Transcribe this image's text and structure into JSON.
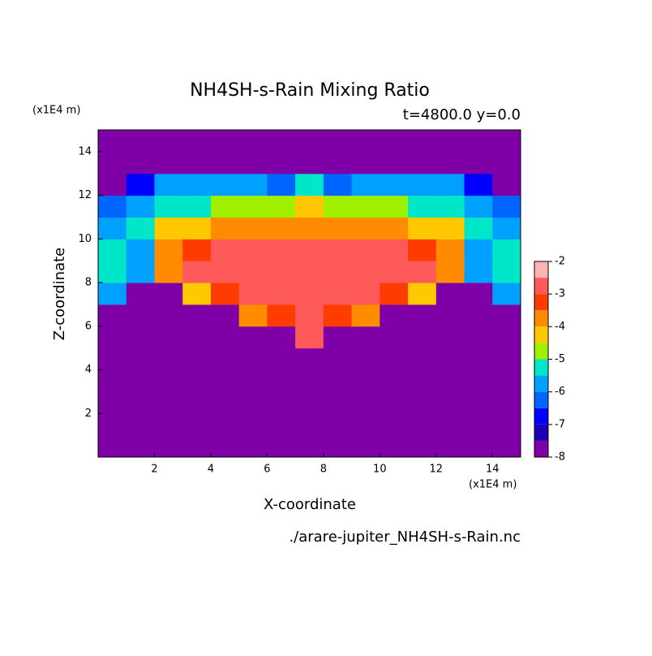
{
  "chart_data": {
    "type": "contour",
    "title": "NH4SH-s-Rain Mixing Ratio",
    "subtitle": "t=4800.0 y=0.0",
    "x_label": "X-coordinate",
    "y_label": "Z-coordinate",
    "x_unit": "(x1E4 m)",
    "y_unit": "(x1E4 m)",
    "footer": "./arare-jupiter_NH4SH-s-Rain.nc",
    "xlim": [
      0,
      15
    ],
    "ylim": [
      0,
      15
    ],
    "xticks": [
      2,
      4,
      6,
      8,
      10,
      12,
      14
    ],
    "yticks": [
      2,
      4,
      6,
      8,
      10,
      12,
      14
    ],
    "x": [
      0.5,
      1.5,
      2.5,
      3.5,
      4.5,
      5.5,
      6.5,
      7.5,
      8.5,
      9.5,
      10.5,
      11.5,
      12.5,
      13.5,
      14.5
    ],
    "y": [
      0.5,
      1.5,
      2.5,
      3.5,
      4.5,
      5.5,
      6.5,
      7.5,
      8.5,
      9.5,
      10.5,
      11.5,
      12.5,
      13.5,
      14.5
    ],
    "z": [
      [
        -9,
        -9,
        -9,
        -9,
        -9,
        -9,
        -9,
        -9,
        -9,
        -9,
        -9,
        -9,
        -9,
        -9,
        -9
      ],
      [
        -9,
        -9,
        -9,
        -9,
        -9,
        -9,
        -9,
        -9,
        -9,
        -9,
        -9,
        -9,
        -9,
        -9,
        -9
      ],
      [
        -9,
        -9,
        -9,
        -9,
        -9,
        -9,
        -9,
        -9,
        -9,
        -9,
        -9,
        -9,
        -9,
        -9,
        -9
      ],
      [
        -9,
        -9,
        -9,
        -9,
        -9,
        -9,
        -9,
        -9,
        -9,
        -9,
        -9,
        -9,
        -9,
        -9,
        -9
      ],
      [
        -9,
        -9,
        -9,
        -9,
        -9,
        -9,
        -9,
        -9,
        -9,
        -9,
        -9,
        -9,
        -9,
        -9,
        -9
      ],
      [
        -9,
        -9,
        -9,
        -9,
        -9,
        -9,
        -9,
        -2.8,
        -9,
        -9,
        -9,
        -9,
        -9,
        -9,
        -9
      ],
      [
        -9,
        -9,
        -9,
        -9,
        -9,
        -3.7,
        -3.5,
        -2.8,
        -3.5,
        -3.7,
        -9,
        -9,
        -9,
        -9,
        -9
      ],
      [
        -5.6,
        -9,
        -9,
        -4.5,
        -3.5,
        -2.8,
        -2.8,
        -2.8,
        -2.8,
        -2.8,
        -3.5,
        -4.5,
        -9,
        -9,
        -5.6
      ],
      [
        -5.4,
        -5.8,
        -3.8,
        -2.8,
        -2.8,
        -2.8,
        -2.6,
        -2.8,
        -2.6,
        -2.8,
        -2.8,
        -2.8,
        -3.8,
        -5.8,
        -5.4
      ],
      [
        -5.3,
        -5.6,
        -3.7,
        -3.2,
        -2.8,
        -2.8,
        -2.8,
        -2.8,
        -2.8,
        -2.8,
        -2.8,
        -3.2,
        -3.7,
        -5.6,
        -5.3
      ],
      [
        -5.7,
        -5.2,
        -4.5,
        -4.2,
        -3.8,
        -3.7,
        -3.7,
        -3.8,
        -3.7,
        -3.7,
        -3.8,
        -4.2,
        -4.5,
        -5.2,
        -5.7
      ],
      [
        -6.3,
        -5.8,
        -5.3,
        -5.2,
        -4.8,
        -4.7,
        -4.6,
        -4.3,
        -4.6,
        -4.7,
        -4.8,
        -5.2,
        -5.3,
        -5.8,
        -6.3
      ],
      [
        -9,
        -6.8,
        -5.9,
        -5.7,
        -5.7,
        -5.8,
        -6.2,
        -5.3,
        -6.2,
        -5.8,
        -5.7,
        -5.7,
        -5.9,
        -6.8,
        -9
      ],
      [
        -9,
        -9,
        -9,
        -9,
        -9,
        -9,
        -9,
        -9,
        -9,
        -9,
        -9,
        -9,
        -9,
        -9,
        -9
      ],
      [
        -9,
        -9,
        -9,
        -9,
        -9,
        -9,
        -9,
        -9,
        -9,
        -9,
        -9,
        -9,
        -9,
        -9,
        -9
      ]
    ],
    "levels": [
      -8,
      -7.5,
      -7,
      -6.5,
      -6,
      -5.5,
      -5,
      -4.5,
      -4,
      -3.5,
      -3,
      -2.5,
      -2
    ],
    "colors": [
      "#8000a8",
      "#1e00b4",
      "#0000ff",
      "#0064ff",
      "#00a0ff",
      "#00e6c8",
      "#a0f000",
      "#ffc800",
      "#ff8c00",
      "#ff3c00",
      "#ff5a5a",
      "#ffb4b4"
    ],
    "colorbar_ticks": [
      -8,
      -7,
      -6,
      -5,
      -4,
      -3,
      -2
    ]
  }
}
